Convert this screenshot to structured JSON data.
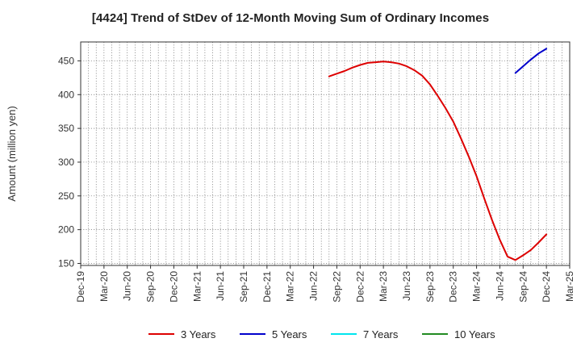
{
  "title": "[4424]  Trend of StDev of 12-Month Moving Sum of Ordinary Incomes",
  "chart_data": {
    "type": "line",
    "title": "[4424]  Trend of StDev of 12-Month Moving Sum of Ordinary Incomes",
    "ylabel": "Amount (million yen)",
    "xlabel": "",
    "ylim": [
      147,
      478
    ],
    "yticks": [
      150,
      200,
      250,
      300,
      350,
      400,
      450
    ],
    "x_ticks": [
      "Dec-19",
      "Mar-20",
      "Jun-20",
      "Sep-20",
      "Dec-20",
      "Mar-21",
      "Jun-21",
      "Sep-21",
      "Dec-21",
      "Mar-22",
      "Jun-22",
      "Sep-22",
      "Dec-22",
      "Mar-23",
      "Jun-23",
      "Sep-23",
      "Dec-23",
      "Mar-24",
      "Jun-24",
      "Sep-24",
      "Dec-24",
      "Mar-25"
    ],
    "grid": true,
    "legend_position": "bottom",
    "series": [
      {
        "name": "3 Years",
        "color": "#dd0000",
        "x": [
          "Aug-22",
          "Sep-22",
          "Oct-22",
          "Nov-22",
          "Dec-22",
          "Jan-23",
          "Feb-23",
          "Mar-23",
          "Apr-23",
          "May-23",
          "Jun-23",
          "Jul-23",
          "Aug-23",
          "Sep-23",
          "Oct-23",
          "Nov-23",
          "Dec-23",
          "Jan-24",
          "Feb-24",
          "Mar-24",
          "Apr-24",
          "May-24",
          "Jun-24",
          "Jul-24",
          "Aug-24",
          "Sep-24",
          "Oct-24",
          "Nov-24",
          "Dec-24"
        ],
        "values": [
          427,
          431,
          435,
          440,
          444,
          447,
          448,
          449,
          448,
          446,
          442,
          436,
          428,
          415,
          398,
          380,
          360,
          335,
          308,
          279,
          246,
          214,
          185,
          160,
          155,
          162,
          170,
          181,
          193
        ]
      },
      {
        "name": "5 Years",
        "color": "#0000cc",
        "x": [
          "Aug-24",
          "Sep-24",
          "Oct-24",
          "Nov-24",
          "Dec-24"
        ],
        "values": [
          432,
          442,
          452,
          461,
          468
        ]
      },
      {
        "name": "7 Years",
        "color": "#00e5ee",
        "x": [],
        "values": []
      },
      {
        "name": "10 Years",
        "color": "#228b22",
        "x": [],
        "values": []
      }
    ]
  }
}
